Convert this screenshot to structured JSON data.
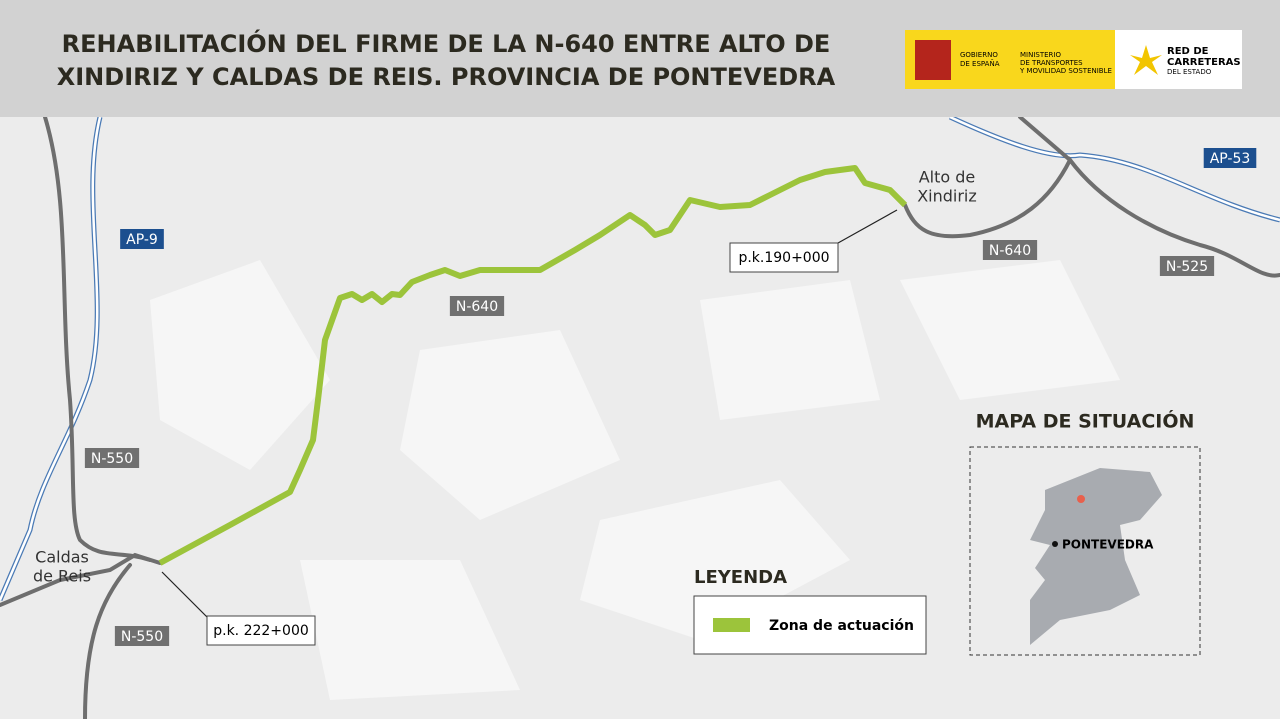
{
  "header": {
    "title_lines": [
      "REHABILITACIÓN DEL FIRME DE LA N-640 ENTRE ALTO DE",
      "XINDIRIZ Y CALDAS DE REIS. PROVINCIA DE PONTEVEDRA"
    ],
    "logos": {
      "government": [
        "GOBIERNO",
        "DE ESPAÑA"
      ],
      "ministry": [
        "MINISTERIO",
        "DE TRANSPORTES",
        "Y MOVILIDAD SOSTENIBLE"
      ],
      "network": [
        "RED DE",
        "CARRETERAS",
        "DEL ESTADO"
      ]
    }
  },
  "map": {
    "road_labels": [
      "AP-9",
      "AP-53",
      "N-640",
      "N-640",
      "N-525",
      "N-550",
      "N-550"
    ],
    "places": {
      "start": [
        "Caldas",
        "de Reis"
      ],
      "end": [
        "Alto de",
        "Xindiriz"
      ]
    },
    "kilometer_points": [
      "p.k.190+000",
      "p.k. 222+000"
    ]
  },
  "legend": {
    "title": "LEYENDA",
    "item": "Zona de actuación"
  },
  "inset": {
    "title": "MAPA DE SITUACIÓN",
    "city": "PONTEVEDRA"
  }
}
